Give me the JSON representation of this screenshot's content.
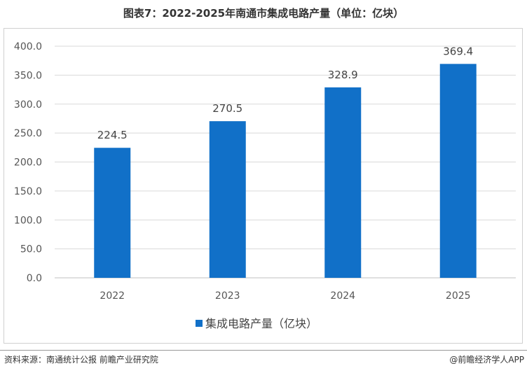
{
  "title": "图表7：2022-2025年南通市集成电路产量（单位：亿块）",
  "footer": {
    "source": "资料来源：南通统计公报  前瞻产业研究院",
    "brand": "@前瞻经济学人APP"
  },
  "colors": {
    "bar": "#1170c8",
    "grid": "#d9d9d9",
    "axis": "#bfbfbf"
  },
  "chart_data": {
    "type": "bar",
    "title": "图表7：2022-2025年南通市集成电路产量（单位：亿块）",
    "categories": [
      "2022",
      "2023",
      "2024",
      "2025"
    ],
    "series": [
      {
        "name": "集成电路产量（亿块）",
        "values": [
          224.5,
          270.5,
          328.9,
          369.4
        ]
      }
    ],
    "data_labels": [
      "224.5",
      "270.5",
      "328.9",
      "369.4"
    ],
    "ylim": [
      0,
      400
    ],
    "yticks": [
      "0.0",
      "50.0",
      "100.0",
      "150.0",
      "200.0",
      "250.0",
      "300.0",
      "350.0",
      "400.0"
    ],
    "grid": true,
    "legend_position": "bottom-center"
  }
}
